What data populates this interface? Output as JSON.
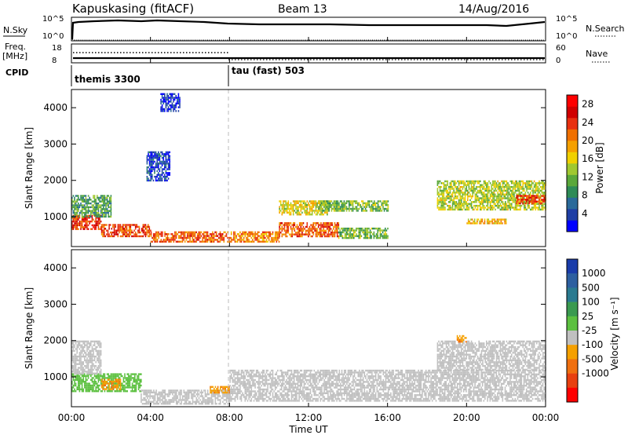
{
  "header": {
    "station": "Kapuskasing (fitACF)",
    "beam": "Beam 13",
    "date": "14/Aug/2016"
  },
  "summary": {
    "nsky_label": "N.Sky",
    "nsky_ticks": [
      "10^5",
      "10^0"
    ],
    "nsearch_label": "N.Search",
    "nsearch_ticks": [
      "10^5",
      "10^0"
    ],
    "freq_label": "Freq.",
    "freq_unit": "[MHz]",
    "freq_ticks": [
      "18",
      "8"
    ],
    "nave_label": "Nave",
    "nave_ticks": [
      "60",
      "0"
    ],
    "cpid_label": "CPID",
    "cpid_modes": [
      {
        "name": "themis 3300",
        "start_hour": 0
      },
      {
        "name": "tau (fast) 503",
        "start_hour": 8
      }
    ]
  },
  "axes": {
    "ylabel": "Slant Range [km]",
    "yticks": [
      "1000",
      "2000",
      "3000",
      "4000"
    ],
    "xticks": [
      "00:00",
      "04:00",
      "08:00",
      "12:00",
      "16:00",
      "20:00",
      "00:00"
    ],
    "xlabel": "Time UT"
  },
  "power_colorbar": {
    "label": "Power [dB]",
    "ticks": [
      "4",
      "8",
      "12",
      "16",
      "20",
      "24",
      "28"
    ],
    "colors": [
      "#0000ff",
      "#1f3fa5",
      "#2a6a9a",
      "#2e8b57",
      "#5aa83a",
      "#a0c830",
      "#f0d000",
      "#f5a000",
      "#f07000",
      "#e83010",
      "#d00000",
      "#ff0000"
    ]
  },
  "velocity_colorbar": {
    "label": "Velocity [m s⁻¹]",
    "ticks": [
      "1000",
      "500",
      "100",
      "25",
      "-25",
      "-100",
      "-500",
      "-1000"
    ],
    "colors": [
      "#1a3caa",
      "#2d5fa0",
      "#2a7a90",
      "#3a9a50",
      "#5cc040",
      "#c0c0c0",
      "#f5a000",
      "#f07010",
      "#e84010",
      "#ff0000"
    ]
  },
  "chart_data": {
    "type": "heatmap",
    "x_range_hours": [
      0,
      24
    ],
    "y_range_km": [
      180,
      4500
    ],
    "power_bands": [
      {
        "t0": 0.0,
        "t1": 1.5,
        "r0": 650,
        "r1": 1050,
        "value": 26
      },
      {
        "t0": 1.5,
        "t1": 4.0,
        "r0": 450,
        "r1": 800,
        "value": 25
      },
      {
        "t0": 4.0,
        "t1": 8.0,
        "r0": 300,
        "r1": 600,
        "value": 24
      },
      {
        "t0": 8.0,
        "t1": 10.5,
        "r0": 300,
        "r1": 600,
        "value": 22
      },
      {
        "t0": 10.5,
        "t1": 13.5,
        "r0": 450,
        "r1": 850,
        "value": 24
      },
      {
        "t0": 13.5,
        "t1": 16.0,
        "r0": 400,
        "r1": 700,
        "value": 14
      },
      {
        "t0": 0.0,
        "t1": 2.0,
        "r0": 1000,
        "r1": 1600,
        "value": 12
      },
      {
        "t0": 10.5,
        "t1": 13.0,
        "r0": 1050,
        "r1": 1450,
        "value": 18
      },
      {
        "t0": 12.5,
        "t1": 16.0,
        "r0": 1150,
        "r1": 1450,
        "value": 14
      },
      {
        "t0": 18.5,
        "t1": 24.0,
        "r0": 1200,
        "r1": 2000,
        "value": 16
      },
      {
        "t0": 22.5,
        "t1": 24.0,
        "r0": 1350,
        "r1": 1600,
        "value": 26
      },
      {
        "t0": 20.0,
        "t1": 22.0,
        "r0": 800,
        "r1": 950,
        "value": 20
      },
      {
        "t0": 3.8,
        "t1": 5.0,
        "r0": 2000,
        "r1": 2800,
        "value": 6
      },
      {
        "t0": 4.5,
        "t1": 5.5,
        "r0": 3900,
        "r1": 4400,
        "value": 5
      }
    ],
    "velocity_bands": [
      {
        "t0": 0.0,
        "t1": 3.5,
        "r0": 600,
        "r1": 1100,
        "value": 60
      },
      {
        "t0": 3.5,
        "t1": 8.0,
        "r0": 280,
        "r1": 650,
        "value": 0
      },
      {
        "t0": 8.0,
        "t1": 24.0,
        "r0": 350,
        "r1": 1200,
        "value": 0
      },
      {
        "t0": 0.0,
        "t1": 1.5,
        "r0": 1100,
        "r1": 2000,
        "value": 0
      },
      {
        "t0": 18.5,
        "t1": 24.0,
        "r0": 1200,
        "r1": 2000,
        "value": 0
      },
      {
        "t0": 7.0,
        "t1": 8.0,
        "r0": 550,
        "r1": 750,
        "value": -90
      },
      {
        "t0": 1.5,
        "t1": 2.5,
        "r0": 650,
        "r1": 950,
        "value": -90
      },
      {
        "t0": 19.5,
        "t1": 20.0,
        "r0": 1950,
        "r1": 2150,
        "value": -90
      }
    ]
  }
}
